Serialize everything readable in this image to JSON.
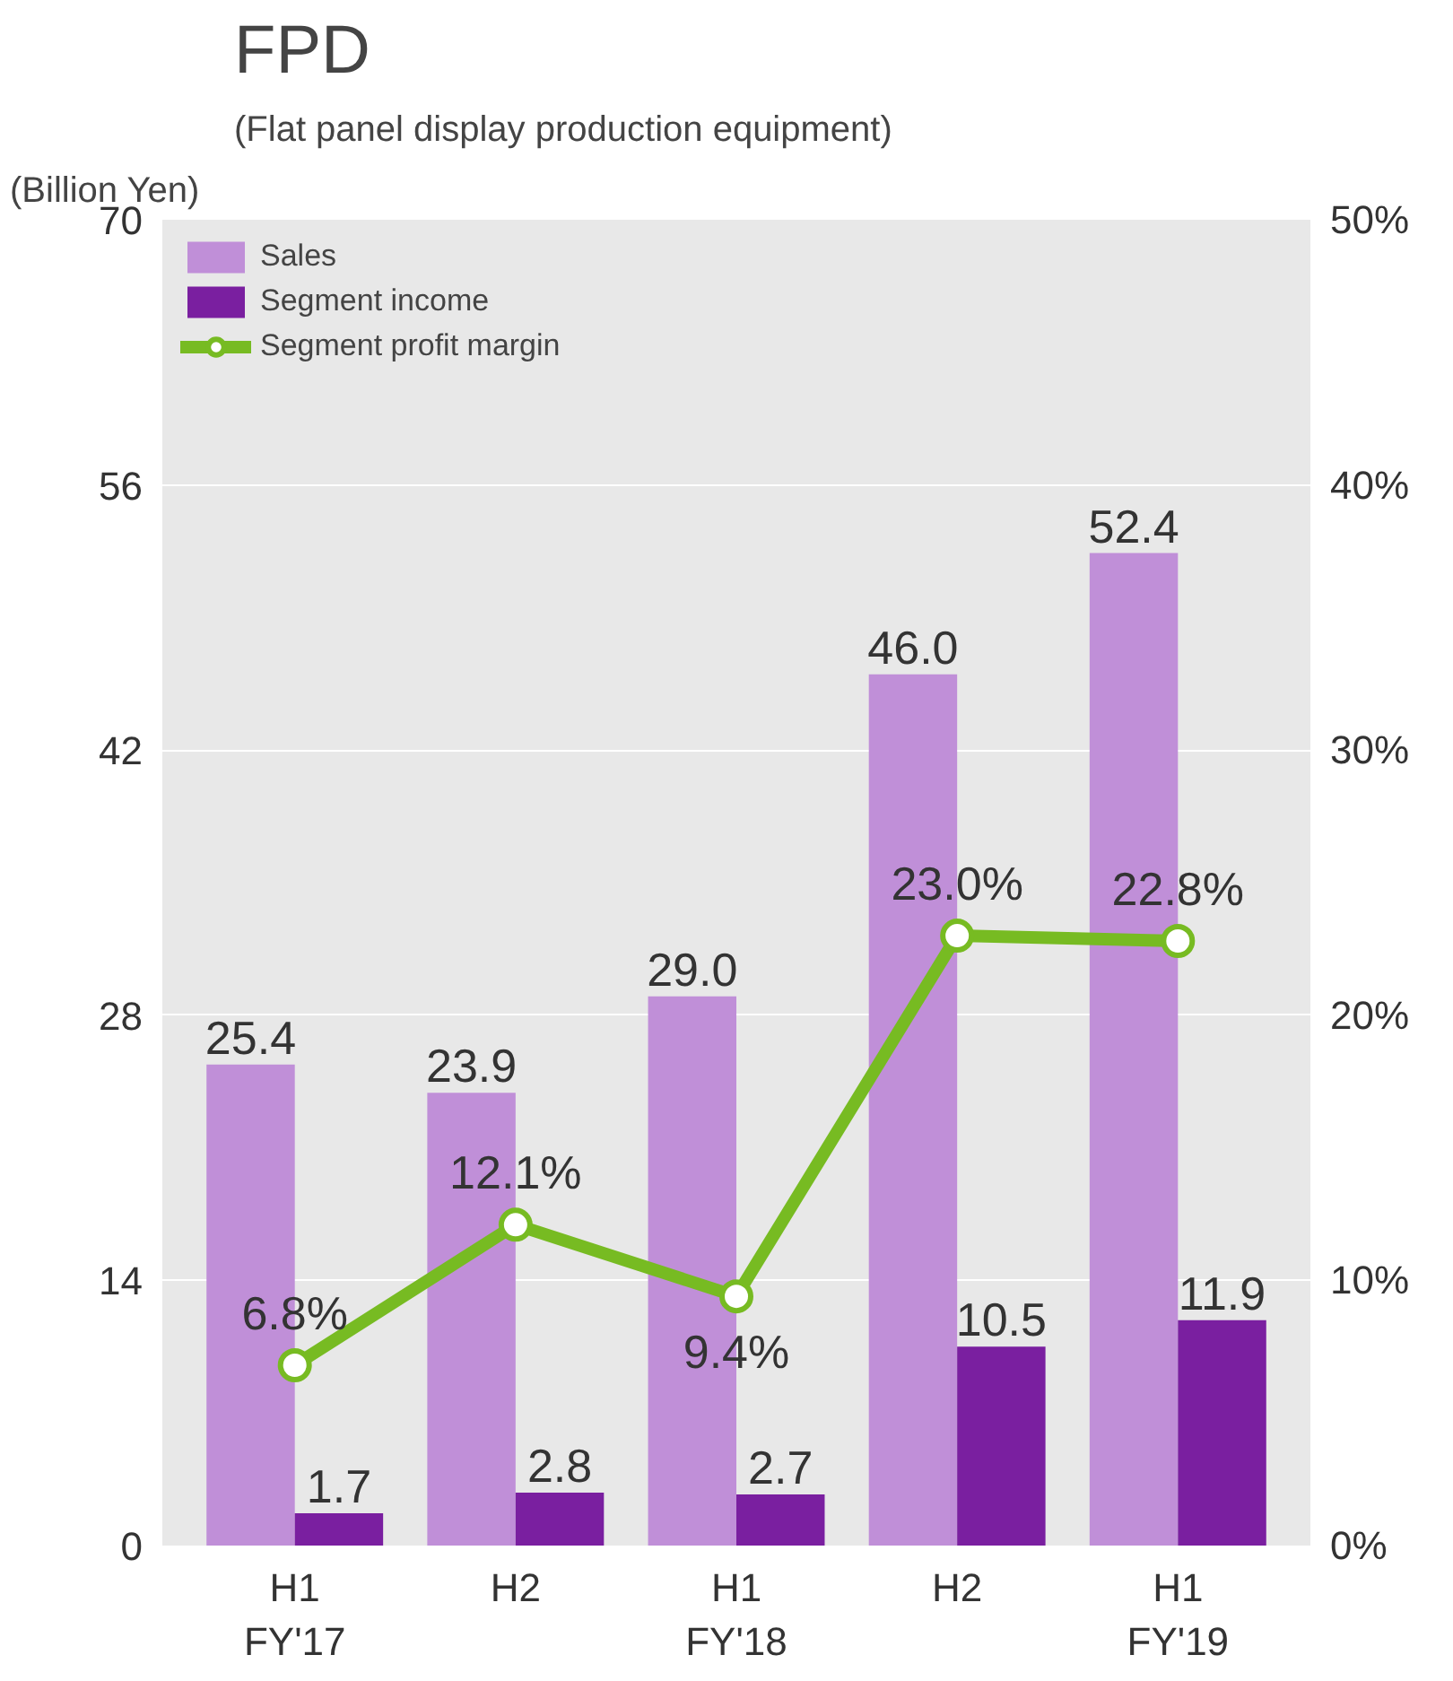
{
  "chart_data": {
    "type": "bar",
    "title": "FPD",
    "subtitle": "(Flat panel display production equipment)",
    "ylabel": "(Billion Yen)",
    "categories": [
      "H1\nFY'17",
      "H2",
      "H1\nFY'18",
      "H2",
      "H1\nFY'19"
    ],
    "series": [
      {
        "name": "Sales",
        "color": "#c08fd8",
        "values": [
          25.4,
          23.9,
          29.0,
          46.0,
          52.4
        ],
        "value_labels": [
          "25.4",
          "23.9",
          "29.0",
          "46.0",
          "52.4"
        ]
      },
      {
        "name": "Segment income",
        "color": "#7a1fa0",
        "values": [
          1.7,
          2.8,
          2.7,
          10.5,
          11.9
        ],
        "value_labels": [
          "1.7",
          "2.8",
          "2.7",
          "10.5",
          "11.9"
        ]
      },
      {
        "name": "Segment profit margin",
        "type": "line",
        "axis": "y2",
        "color": "#77bb22",
        "marker": "circle",
        "values": [
          6.8,
          12.1,
          9.4,
          23.0,
          22.8
        ],
        "value_labels": [
          "6.8%",
          "12.1%",
          "9.4%",
          "23.0%",
          "22.8%"
        ]
      }
    ],
    "ylim": [
      0,
      70
    ],
    "yticks": [
      0,
      14,
      28,
      42,
      56,
      70
    ],
    "y2lim": [
      0,
      50
    ],
    "y2ticks": [
      {
        "value": 0,
        "label": "0%"
      },
      {
        "value": 10,
        "label": "10%"
      },
      {
        "value": 20,
        "label": "20%"
      },
      {
        "value": 30,
        "label": "30%"
      },
      {
        "value": 40,
        "label": "40%"
      },
      {
        "value": 50,
        "label": "50%"
      }
    ],
    "grid": "y",
    "legend": "top left"
  }
}
